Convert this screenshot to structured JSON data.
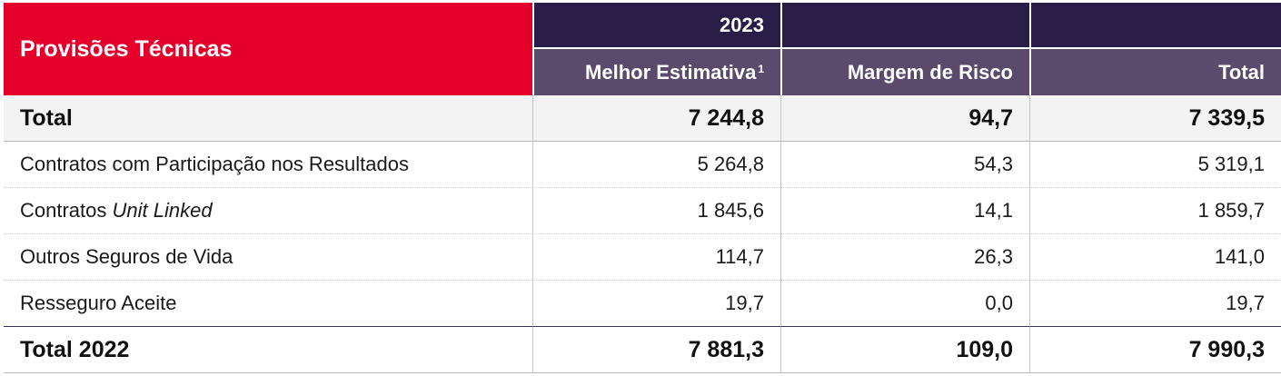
{
  "table": {
    "title": "Provisões Técnicas",
    "year_header": "2023",
    "columns": {
      "best_estimate": "Melhor Estimativa",
      "best_estimate_footnote": "1",
      "risk_margin": "Margem de Risco",
      "total": "Total"
    },
    "total_row": {
      "label": "Total",
      "best_estimate": "7 244,8",
      "risk_margin": "94,7",
      "total": "7 339,5"
    },
    "rows": [
      {
        "label": "Contratos com Participação nos Resultados",
        "label_italic": "",
        "best_estimate": "5 264,8",
        "risk_margin": "54,3",
        "total": "5 319,1"
      },
      {
        "label": "Contratos ",
        "label_italic": "Unit Linked",
        "best_estimate": "1 845,6",
        "risk_margin": "14,1",
        "total": "1 859,7"
      },
      {
        "label": "Outros Seguros de Vida",
        "label_italic": "",
        "best_estimate": "114,7",
        "risk_margin": "26,3",
        "total": "141,0"
      },
      {
        "label": "Resseguro Aceite",
        "label_italic": "",
        "best_estimate": "19,7",
        "risk_margin": "0,0",
        "total": "19,7"
      }
    ],
    "total_2022_row": {
      "label": "Total 2022",
      "best_estimate": "7 881,3",
      "risk_margin": "109,0",
      "total": "7 990,3"
    }
  }
}
